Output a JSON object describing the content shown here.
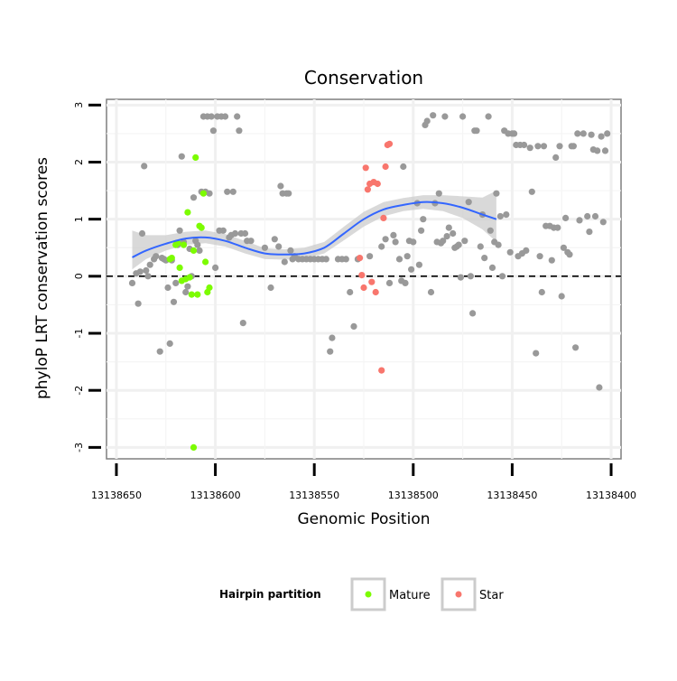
{
  "chart_data": {
    "type": "scatter",
    "title": "Conservation",
    "xlabel": "Genomic Position",
    "ylabel": "phyloP LRT conservation scores",
    "x_reversed": true,
    "xlim": [
      13138655,
      13138395
    ],
    "ylim": [
      -3.2,
      3.1
    ],
    "x_ticks": [
      13138650,
      13138600,
      13138550,
      13138500,
      13138450,
      13138400
    ],
    "x_tick_labels": [
      "13138650",
      "13138600",
      "13138550",
      "13138500",
      "13138450",
      "13138400"
    ],
    "y_ticks": [
      -3,
      -2,
      -1,
      0,
      1,
      2,
      3
    ],
    "y_tick_labels": [
      "-3",
      "-2",
      "-1",
      "0",
      "1",
      "2",
      "3"
    ],
    "reference_line": {
      "y": 0,
      "style": "dashed"
    },
    "grid": true,
    "colors": {
      "other": "#999999",
      "Mature": "#7cfc00",
      "Star": "#f8766d",
      "smooth": "#3366ff",
      "ribbon": "#cccccc"
    },
    "legend": {
      "title": "Hairpin partition",
      "position": "bottom",
      "entries": [
        {
          "label": "Mature",
          "color": "#7cfc00"
        },
        {
          "label": "Star",
          "color": "#f8766d"
        }
      ]
    },
    "series": [
      {
        "name": "Other",
        "points": [
          [
            13138642,
            -0.12
          ],
          [
            13138640,
            0.05
          ],
          [
            13138639,
            -0.48
          ],
          [
            13138638,
            0.08
          ],
          [
            13138637,
            0.75
          ],
          [
            13138636,
            1.93
          ],
          [
            13138635,
            0.1
          ],
          [
            13138634,
            0.0
          ],
          [
            13138633,
            0.2
          ],
          [
            13138631,
            0.3
          ],
          [
            13138630,
            0.35
          ],
          [
            13138628,
            -1.32
          ],
          [
            13138627,
            0.32
          ],
          [
            13138626,
            0.3
          ],
          [
            13138625,
            0.28
          ],
          [
            13138624,
            -0.2
          ],
          [
            13138623,
            -1.18
          ],
          [
            13138622,
            0.28
          ],
          [
            13138621,
            -0.45
          ],
          [
            13138620,
            -0.12
          ],
          [
            13138619,
            0.55
          ],
          [
            13138618,
            0.8
          ],
          [
            13138617,
            2.1
          ],
          [
            13138616,
            0.6
          ],
          [
            13138615,
            -0.28
          ],
          [
            13138614,
            -0.18
          ],
          [
            13138613,
            0.48
          ],
          [
            13138612,
            0.0
          ],
          [
            13138611,
            1.38
          ],
          [
            13138610,
            0.62
          ],
          [
            13138609,
            0.55
          ],
          [
            13138608,
            0.45
          ],
          [
            13138607,
            1.48
          ],
          [
            13138606,
            2.8
          ],
          [
            13138605,
            1.48
          ],
          [
            13138604,
            2.8
          ],
          [
            13138603,
            1.45
          ],
          [
            13138602,
            2.8
          ],
          [
            13138601,
            2.55
          ],
          [
            13138600,
            0.15
          ],
          [
            13138599,
            2.8
          ],
          [
            13138598,
            0.8
          ],
          [
            13138597,
            2.8
          ],
          [
            13138596,
            0.8
          ],
          [
            13138595,
            2.8
          ],
          [
            13138594,
            1.48
          ],
          [
            13138593,
            0.68
          ],
          [
            13138592,
            0.72
          ],
          [
            13138591,
            1.48
          ],
          [
            13138590,
            0.75
          ],
          [
            13138589,
            2.8
          ],
          [
            13138588,
            2.55
          ],
          [
            13138587,
            0.75
          ],
          [
            13138586,
            -0.82
          ],
          [
            13138585,
            0.75
          ],
          [
            13138584,
            0.62
          ],
          [
            13138582,
            0.62
          ],
          [
            13138575,
            0.5
          ],
          [
            13138572,
            -0.2
          ],
          [
            13138570,
            0.65
          ],
          [
            13138568,
            0.52
          ],
          [
            13138567,
            1.58
          ],
          [
            13138566,
            1.45
          ],
          [
            13138565,
            0.25
          ],
          [
            13138564,
            1.45
          ],
          [
            13138563,
            1.45
          ],
          [
            13138562,
            0.45
          ],
          [
            13138561,
            0.3
          ],
          [
            13138560,
            0.35
          ],
          [
            13138558,
            0.3
          ],
          [
            13138556,
            0.3
          ],
          [
            13138554,
            0.3
          ],
          [
            13138552,
            0.3
          ],
          [
            13138550,
            0.3
          ],
          [
            13138548,
            0.3
          ],
          [
            13138546,
            0.3
          ],
          [
            13138544,
            0.3
          ],
          [
            13138542,
            -1.32
          ],
          [
            13138541,
            -1.08
          ],
          [
            13138538,
            0.3
          ],
          [
            13138536,
            0.3
          ],
          [
            13138534,
            0.3
          ],
          [
            13138532,
            -0.28
          ],
          [
            13138530,
            -0.88
          ],
          [
            13138528,
            0.3
          ],
          [
            13138522,
            0.35
          ],
          [
            13138516,
            0.52
          ],
          [
            13138514,
            0.65
          ],
          [
            13138512,
            -0.12
          ],
          [
            13138510,
            0.72
          ],
          [
            13138509,
            0.6
          ],
          [
            13138507,
            0.3
          ],
          [
            13138506,
            -0.08
          ],
          [
            13138505,
            1.92
          ],
          [
            13138504,
            -0.12
          ],
          [
            13138503,
            0.35
          ],
          [
            13138502,
            0.62
          ],
          [
            13138501,
            0.12
          ],
          [
            13138500,
            0.6
          ],
          [
            13138498,
            1.28
          ],
          [
            13138497,
            0.2
          ],
          [
            13138496,
            0.8
          ],
          [
            13138495,
            1.0
          ],
          [
            13138494,
            2.65
          ],
          [
            13138493,
            2.72
          ],
          [
            13138491,
            -0.28
          ],
          [
            13138490,
            2.82
          ],
          [
            13138489,
            1.28
          ],
          [
            13138488,
            0.6
          ],
          [
            13138487,
            1.45
          ],
          [
            13138486,
            0.58
          ],
          [
            13138485,
            0.62
          ],
          [
            13138484,
            2.8
          ],
          [
            13138483,
            0.7
          ],
          [
            13138482,
            0.85
          ],
          [
            13138480,
            0.75
          ],
          [
            13138479,
            0.5
          ],
          [
            13138478,
            0.52
          ],
          [
            13138477,
            0.55
          ],
          [
            13138476,
            -0.02
          ],
          [
            13138475,
            2.8
          ],
          [
            13138474,
            0.62
          ],
          [
            13138472,
            1.3
          ],
          [
            13138471,
            0.0
          ],
          [
            13138470,
            -0.65
          ],
          [
            13138469,
            2.55
          ],
          [
            13138468,
            2.55
          ],
          [
            13138466,
            0.52
          ],
          [
            13138465,
            1.08
          ],
          [
            13138464,
            0.32
          ],
          [
            13138462,
            2.8
          ],
          [
            13138461,
            0.8
          ],
          [
            13138460,
            0.15
          ],
          [
            13138459,
            0.6
          ],
          [
            13138458,
            1.45
          ],
          [
            13138457,
            0.55
          ],
          [
            13138456,
            1.05
          ],
          [
            13138455,
            0.0
          ],
          [
            13138454,
            2.55
          ],
          [
            13138453,
            1.08
          ],
          [
            13138452,
            2.5
          ],
          [
            13138451,
            0.42
          ],
          [
            13138450,
            2.5
          ],
          [
            13138449,
            2.5
          ],
          [
            13138448,
            2.3
          ],
          [
            13138447,
            0.35
          ],
          [
            13138446,
            2.3
          ],
          [
            13138445,
            0.4
          ],
          [
            13138444,
            2.3
          ],
          [
            13138443,
            0.45
          ],
          [
            13138441,
            2.25
          ],
          [
            13138440,
            1.48
          ],
          [
            13138438,
            -1.35
          ],
          [
            13138437,
            2.28
          ],
          [
            13138436,
            0.35
          ],
          [
            13138435,
            -0.28
          ],
          [
            13138434,
            2.28
          ],
          [
            13138433,
            0.88
          ],
          [
            13138431,
            0.88
          ],
          [
            13138430,
            0.28
          ],
          [
            13138429,
            0.85
          ],
          [
            13138428,
            2.08
          ],
          [
            13138427,
            0.85
          ],
          [
            13138426,
            2.28
          ],
          [
            13138425,
            -0.35
          ],
          [
            13138424,
            0.5
          ],
          [
            13138423,
            1.02
          ],
          [
            13138422,
            0.42
          ],
          [
            13138421,
            0.38
          ],
          [
            13138420,
            2.28
          ],
          [
            13138419,
            2.28
          ],
          [
            13138418,
            -1.25
          ],
          [
            13138417,
            2.5
          ],
          [
            13138416,
            0.98
          ],
          [
            13138414,
            2.5
          ],
          [
            13138412,
            1.05
          ],
          [
            13138411,
            0.78
          ],
          [
            13138410,
            2.48
          ],
          [
            13138409,
            2.22
          ],
          [
            13138408,
            1.05
          ],
          [
            13138407,
            2.2
          ],
          [
            13138406,
            -1.95
          ],
          [
            13138405,
            2.45
          ],
          [
            13138404,
            0.95
          ],
          [
            13138403,
            2.2
          ],
          [
            13138402,
            2.5
          ]
        ]
      },
      {
        "name": "Mature",
        "points": [
          [
            13138623,
            0.3
          ],
          [
            13138622,
            0.32
          ],
          [
            13138620,
            0.55
          ],
          [
            13138619,
            0.58
          ],
          [
            13138618,
            0.15
          ],
          [
            13138617,
            -0.08
          ],
          [
            13138616,
            0.55
          ],
          [
            13138615,
            -0.05
          ],
          [
            13138614,
            1.12
          ],
          [
            13138613,
            -0.02
          ],
          [
            13138612,
            -0.32
          ],
          [
            13138611,
            0.45
          ],
          [
            13138610,
            2.08
          ],
          [
            13138609,
            -0.32
          ],
          [
            13138608,
            0.88
          ],
          [
            13138607,
            0.85
          ],
          [
            13138606,
            1.45
          ],
          [
            13138605,
            0.25
          ],
          [
            13138604,
            -0.28
          ],
          [
            13138603,
            -0.2
          ],
          [
            13138611,
            -3.0
          ]
        ]
      },
      {
        "name": "Star",
        "points": [
          [
            13138527,
            0.32
          ],
          [
            13138526,
            0.02
          ],
          [
            13138525,
            -0.2
          ],
          [
            13138524,
            1.9
          ],
          [
            13138523,
            1.52
          ],
          [
            13138522,
            1.62
          ],
          [
            13138521,
            -0.1
          ],
          [
            13138520,
            1.65
          ],
          [
            13138519,
            -0.28
          ],
          [
            13138518,
            1.62
          ],
          [
            13138516,
            -1.65
          ],
          [
            13138515,
            1.02
          ],
          [
            13138514,
            1.92
          ],
          [
            13138513,
            2.3
          ],
          [
            13138512,
            2.32
          ]
        ]
      }
    ],
    "smooth_curve": {
      "points": [
        [
          13138642,
          0.33
        ],
        [
          13138635,
          0.45
        ],
        [
          13138625,
          0.57
        ],
        [
          13138615,
          0.66
        ],
        [
          13138605,
          0.68
        ],
        [
          13138595,
          0.62
        ],
        [
          13138585,
          0.5
        ],
        [
          13138575,
          0.4
        ],
        [
          13138565,
          0.38
        ],
        [
          13138555,
          0.4
        ],
        [
          13138545,
          0.5
        ],
        [
          13138535,
          0.75
        ],
        [
          13138525,
          1.0
        ],
        [
          13138515,
          1.17
        ],
        [
          13138505,
          1.25
        ],
        [
          13138495,
          1.3
        ],
        [
          13138485,
          1.28
        ],
        [
          13138475,
          1.2
        ],
        [
          13138465,
          1.08
        ],
        [
          13138458,
          1.0
        ]
      ],
      "ci_lower": [
        0.12,
        0.3,
        0.45,
        0.55,
        0.58,
        0.52,
        0.4,
        0.3,
        0.29,
        0.31,
        0.4,
        0.63,
        0.87,
        1.05,
        1.14,
        1.18,
        1.14,
        1.02,
        0.82,
        0.6
      ],
      "ci_upper": [
        0.8,
        0.72,
        0.72,
        0.78,
        0.8,
        0.74,
        0.62,
        0.49,
        0.47,
        0.5,
        0.6,
        0.87,
        1.13,
        1.3,
        1.37,
        1.42,
        1.42,
        1.4,
        1.38,
        1.5
      ]
    }
  }
}
